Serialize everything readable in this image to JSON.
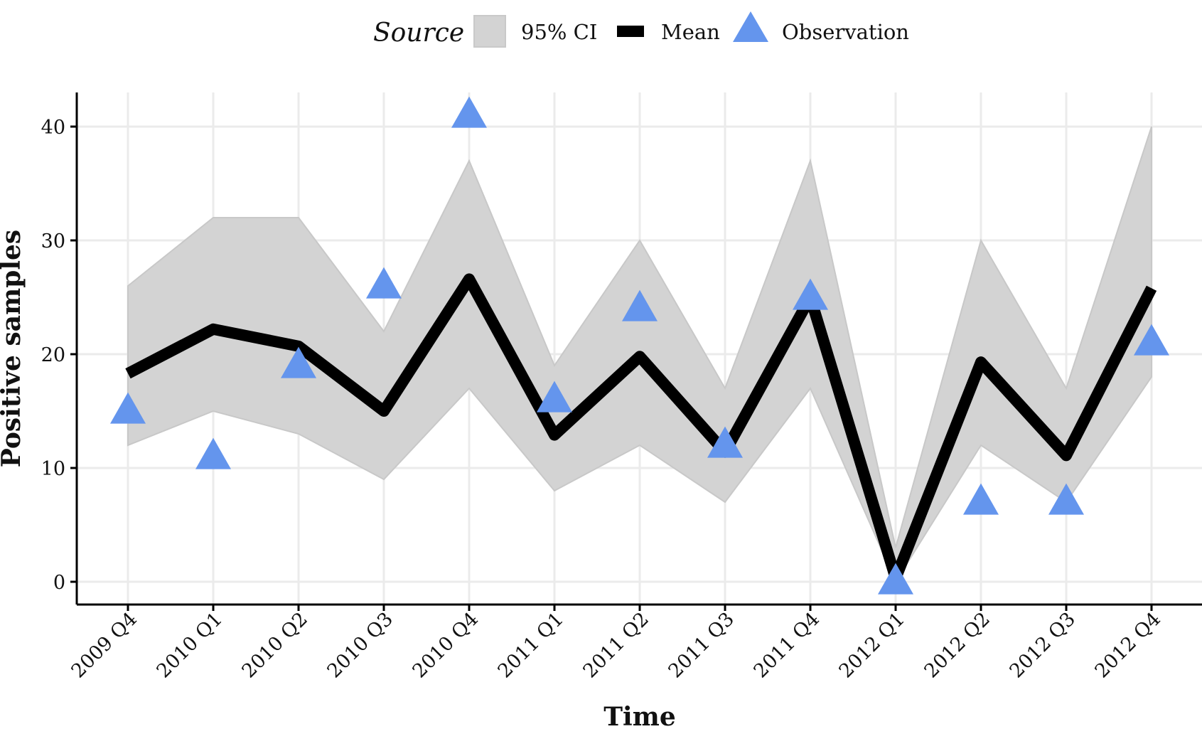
{
  "legend": {
    "title": "Source",
    "ci_label": "95% CI",
    "mean_label": "Mean",
    "obs_label": "Observation",
    "position": "top"
  },
  "colors": {
    "ci_fill": "#d3d3d3",
    "mean": "#000000",
    "observation": "#6495ed",
    "grid": "#ebebeb",
    "axis": "#000000"
  },
  "chart_data": {
    "type": "line",
    "xlabel": "Time",
    "ylabel": "Positive samples",
    "ylim": [
      -2,
      43
    ],
    "yticks": [
      0,
      10,
      20,
      30,
      40
    ],
    "grid": true,
    "legend_position": "top",
    "categories": [
      "2009 Q4",
      "2010 Q1",
      "2010 Q2",
      "2010 Q3",
      "2010 Q4",
      "2011 Q1",
      "2011 Q2",
      "2011 Q3",
      "2011 Q4",
      "2012 Q1",
      "2012 Q2",
      "2012 Q3",
      "2012 Q4"
    ],
    "series": [
      {
        "name": "95% CI",
        "kind": "ribbon",
        "lower": [
          12,
          15,
          13,
          9,
          17,
          8,
          12,
          7,
          17,
          0,
          12,
          7,
          18
        ],
        "upper": [
          26,
          32,
          32,
          22,
          37,
          19,
          30,
          17,
          37,
          3,
          30,
          17,
          40
        ]
      },
      {
        "name": "Mean",
        "kind": "line",
        "values": [
          18.3,
          22.2,
          20.7,
          15.0,
          26.6,
          12.9,
          19.8,
          11.4,
          25.0,
          0.3,
          19.3,
          11.1,
          25.8
        ]
      },
      {
        "name": "Observation",
        "kind": "points",
        "values": [
          15,
          11,
          19,
          26,
          41,
          16,
          24,
          12,
          25,
          0,
          7,
          7,
          21
        ]
      }
    ]
  }
}
